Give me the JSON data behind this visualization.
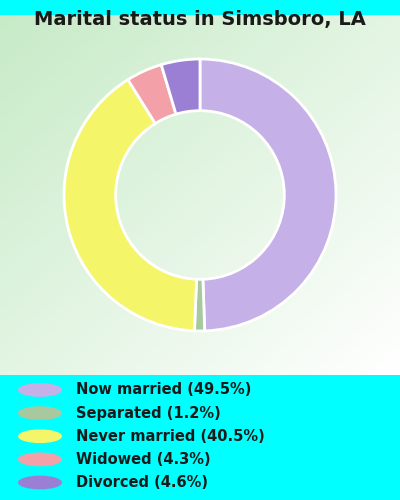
{
  "title": "Marital status in Simsboro, LA",
  "background_color": "#00FFFF",
  "chart_bg_color": "#c8e6c9",
  "categories": [
    "Now married",
    "Separated",
    "Never married",
    "Widowed",
    "Divorced"
  ],
  "values": [
    49.5,
    1.2,
    40.5,
    4.3,
    4.6
  ],
  "colors": [
    "#c5b0e8",
    "#a8c8a0",
    "#f5f56a",
    "#f4a0a8",
    "#9b7fd4"
  ],
  "legend_colors": [
    "#c5b0e8",
    "#a8c8a0",
    "#f5f56a",
    "#f4a0a8",
    "#9b7fd4"
  ],
  "legend_labels": [
    "Now married (49.5%)",
    "Separated (1.2%)",
    "Never married (40.5%)",
    "Widowed (4.3%)",
    "Divorced (4.6%)"
  ],
  "title_fontsize": 14,
  "legend_fontsize": 10.5
}
